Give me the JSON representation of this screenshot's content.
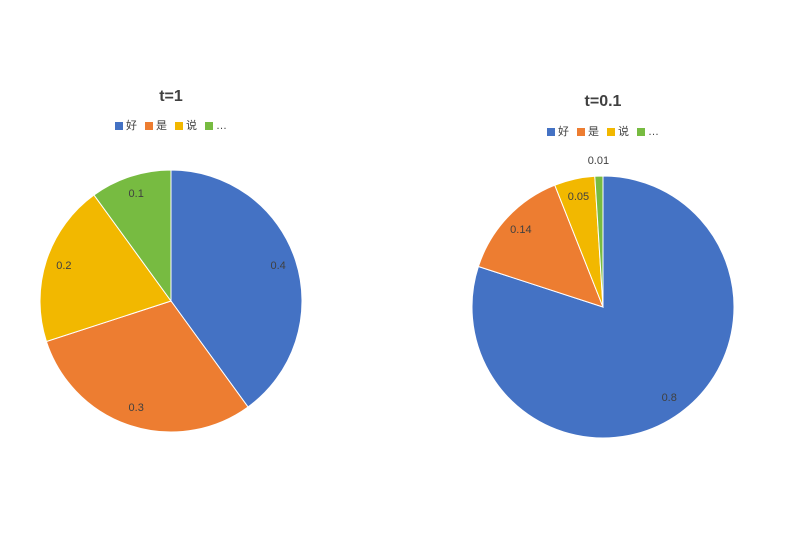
{
  "chart_data": [
    {
      "type": "pie",
      "title": "t=1",
      "categories": [
        "好",
        "是",
        "说",
        "…"
      ],
      "values": [
        0.4,
        0.3,
        0.2,
        0.1
      ],
      "colors": [
        "#4472c4",
        "#ed7d31",
        "#f2b800",
        "#77bb41"
      ],
      "legend": "top"
    },
    {
      "type": "pie",
      "title": "t=0.1",
      "categories": [
        "好",
        "是",
        "说",
        "…"
      ],
      "values": [
        0.8,
        0.14,
        0.05,
        0.01
      ],
      "colors": [
        "#4472c4",
        "#ed7d31",
        "#f2b800",
        "#77bb41"
      ],
      "legend": "top"
    }
  ]
}
